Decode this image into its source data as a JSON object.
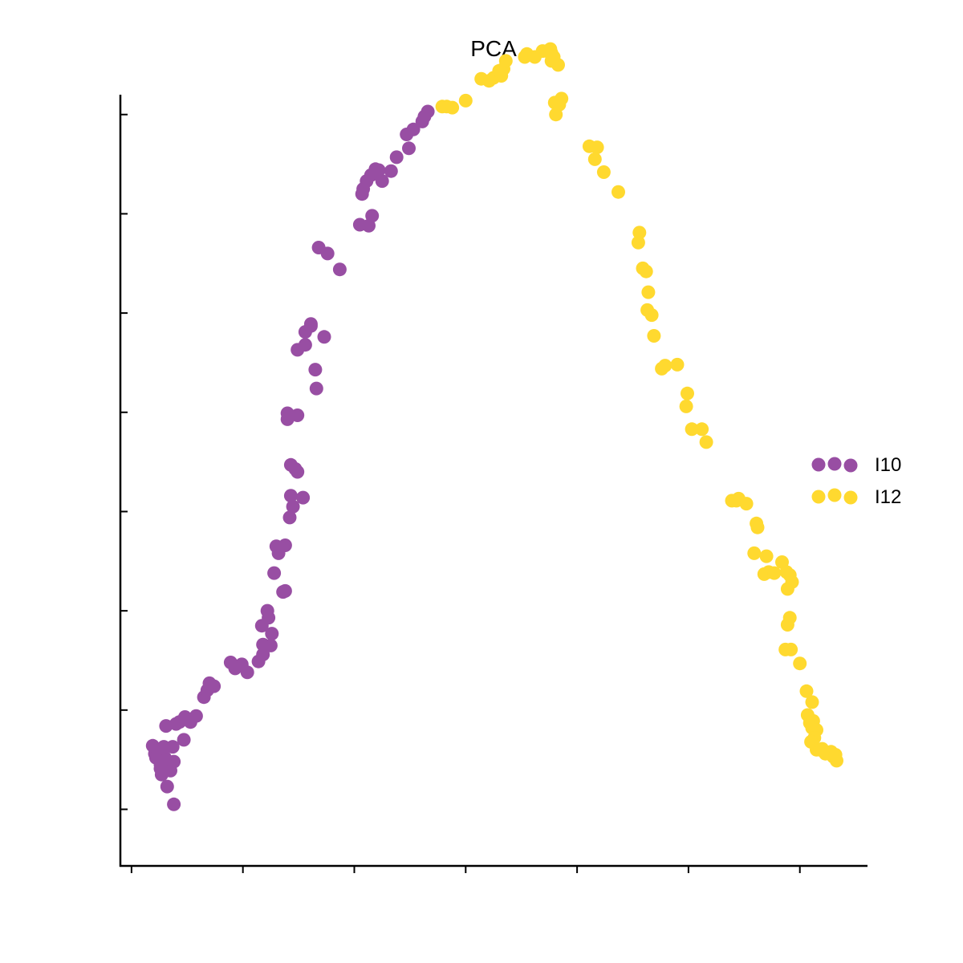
{
  "chart_data": {
    "type": "scatter",
    "title": "PCA",
    "xlabel": "",
    "ylabel": "",
    "xlim": [
      -0.1,
      6.6
    ],
    "ylim": [
      -0.57,
      7.2
    ],
    "x_ticks": [
      0,
      1,
      2,
      3,
      4,
      5,
      6
    ],
    "y_ticks": [
      0,
      1,
      2,
      3,
      4,
      5,
      6,
      7
    ],
    "tick_labels_shown": false,
    "grid": false,
    "legend_position": "right",
    "series": [
      {
        "name": "I10",
        "color": "#984ea3",
        "points": [
          [
            0.38,
            0.05
          ],
          [
            0.32,
            0.23
          ],
          [
            0.26,
            0.41
          ],
          [
            0.35,
            0.39
          ],
          [
            0.27,
            0.35
          ],
          [
            0.38,
            0.48
          ],
          [
            0.3,
            0.51
          ],
          [
            0.26,
            0.45
          ],
          [
            0.3,
            0.52
          ],
          [
            0.22,
            0.52
          ],
          [
            0.21,
            0.56
          ],
          [
            0.19,
            0.64
          ],
          [
            0.29,
            0.63
          ],
          [
            0.37,
            0.63
          ],
          [
            0.47,
            0.7
          ],
          [
            0.31,
            0.84
          ],
          [
            0.4,
            0.86
          ],
          [
            0.43,
            0.88
          ],
          [
            0.53,
            0.88
          ],
          [
            0.48,
            0.93
          ],
          [
            0.58,
            0.94
          ],
          [
            0.65,
            1.13
          ],
          [
            0.68,
            1.2
          ],
          [
            0.74,
            1.24
          ],
          [
            0.7,
            1.27
          ],
          [
            1.04,
            1.38
          ],
          [
            0.93,
            1.42
          ],
          [
            0.99,
            1.46
          ],
          [
            0.89,
            1.48
          ],
          [
            1.14,
            1.49
          ],
          [
            1.18,
            1.56
          ],
          [
            1.25,
            1.65
          ],
          [
            1.18,
            1.66
          ],
          [
            1.26,
            1.77
          ],
          [
            1.17,
            1.85
          ],
          [
            1.23,
            1.93
          ],
          [
            1.22,
            2.0
          ],
          [
            1.36,
            2.19
          ],
          [
            1.38,
            2.2
          ],
          [
            1.28,
            2.38
          ],
          [
            1.32,
            2.58
          ],
          [
            1.3,
            2.65
          ],
          [
            1.38,
            2.66
          ],
          [
            1.42,
            2.94
          ],
          [
            1.45,
            3.05
          ],
          [
            1.54,
            3.14
          ],
          [
            1.43,
            3.16
          ],
          [
            1.49,
            3.4
          ],
          [
            1.47,
            3.43
          ],
          [
            1.43,
            3.47
          ],
          [
            1.4,
            3.93
          ],
          [
            1.4,
            3.99
          ],
          [
            1.49,
            3.97
          ],
          [
            1.66,
            4.24
          ],
          [
            1.65,
            4.43
          ],
          [
            1.49,
            4.63
          ],
          [
            1.56,
            4.68
          ],
          [
            1.73,
            4.76
          ],
          [
            1.56,
            4.81
          ],
          [
            1.61,
            4.87
          ],
          [
            1.61,
            4.89
          ],
          [
            1.87,
            5.44
          ],
          [
            1.76,
            5.6
          ],
          [
            1.68,
            5.66
          ],
          [
            2.05,
            5.89
          ],
          [
            2.13,
            5.88
          ],
          [
            2.16,
            5.98
          ],
          [
            2.07,
            6.2
          ],
          [
            2.08,
            6.25
          ],
          [
            2.11,
            6.33
          ],
          [
            2.25,
            6.33
          ],
          [
            2.15,
            6.39
          ],
          [
            2.19,
            6.45
          ],
          [
            2.22,
            6.44
          ],
          [
            2.33,
            6.43
          ],
          [
            2.38,
            6.57
          ],
          [
            2.49,
            6.66
          ],
          [
            2.47,
            6.8
          ],
          [
            2.53,
            6.85
          ],
          [
            2.61,
            6.93
          ],
          [
            2.63,
            6.98
          ],
          [
            2.66,
            7.03
          ]
        ]
      },
      {
        "name": "I12",
        "color": "#ffd92f",
        "points": [
          [
            2.79,
            7.08
          ],
          [
            2.83,
            7.08
          ],
          [
            2.88,
            7.07
          ],
          [
            3.0,
            7.14
          ],
          [
            3.14,
            7.36
          ],
          [
            3.21,
            7.34
          ],
          [
            3.25,
            7.37
          ],
          [
            3.32,
            7.39
          ],
          [
            3.3,
            7.44
          ],
          [
            3.34,
            7.46
          ],
          [
            3.36,
            7.54
          ],
          [
            3.53,
            7.58
          ],
          [
            3.55,
            7.61
          ],
          [
            3.62,
            7.58
          ],
          [
            3.69,
            7.64
          ],
          [
            3.76,
            7.66
          ],
          [
            3.77,
            7.62
          ],
          [
            3.73,
            7.64
          ],
          [
            3.79,
            7.58
          ],
          [
            3.83,
            7.5
          ],
          [
            3.77,
            7.54
          ],
          [
            3.8,
            7.12
          ],
          [
            3.84,
            7.1
          ],
          [
            3.86,
            7.16
          ],
          [
            3.81,
            7.0
          ],
          [
            4.11,
            6.68
          ],
          [
            4.18,
            6.67
          ],
          [
            4.16,
            6.55
          ],
          [
            4.24,
            6.42
          ],
          [
            4.37,
            6.22
          ],
          [
            4.55,
            5.71
          ],
          [
            4.56,
            5.81
          ],
          [
            4.59,
            5.45
          ],
          [
            4.62,
            5.42
          ],
          [
            4.64,
            5.21
          ],
          [
            4.63,
            5.03
          ],
          [
            4.67,
            4.98
          ],
          [
            4.69,
            4.77
          ],
          [
            4.76,
            4.44
          ],
          [
            4.79,
            4.47
          ],
          [
            4.9,
            4.48
          ],
          [
            4.99,
            4.19
          ],
          [
            4.98,
            4.06
          ],
          [
            5.03,
            3.83
          ],
          [
            5.12,
            3.83
          ],
          [
            5.16,
            3.7
          ],
          [
            5.39,
            3.11
          ],
          [
            5.45,
            3.13
          ],
          [
            5.43,
            3.11
          ],
          [
            5.52,
            3.08
          ],
          [
            5.61,
            2.88
          ],
          [
            5.62,
            2.84
          ],
          [
            5.59,
            2.58
          ],
          [
            5.7,
            2.55
          ],
          [
            5.72,
            2.39
          ],
          [
            5.68,
            2.37
          ],
          [
            5.77,
            2.38
          ],
          [
            5.84,
            2.49
          ],
          [
            5.88,
            2.39
          ],
          [
            5.91,
            2.36
          ],
          [
            5.93,
            2.29
          ],
          [
            5.89,
            2.22
          ],
          [
            5.91,
            1.93
          ],
          [
            5.89,
            1.86
          ],
          [
            5.87,
            1.61
          ],
          [
            5.92,
            1.61
          ],
          [
            6.0,
            1.47
          ],
          [
            6.06,
            1.19
          ],
          [
            6.11,
            1.08
          ],
          [
            6.07,
            0.95
          ],
          [
            6.09,
            0.87
          ],
          [
            6.12,
            0.89
          ],
          [
            6.11,
            0.82
          ],
          [
            6.15,
            0.8
          ],
          [
            6.13,
            0.72
          ],
          [
            6.1,
            0.68
          ],
          [
            6.15,
            0.6
          ],
          [
            6.18,
            0.6
          ],
          [
            6.2,
            0.61
          ],
          [
            6.28,
            0.58
          ],
          [
            6.3,
            0.53
          ],
          [
            6.33,
            0.49
          ],
          [
            6.23,
            0.56
          ],
          [
            6.32,
            0.55
          ]
        ]
      }
    ]
  }
}
